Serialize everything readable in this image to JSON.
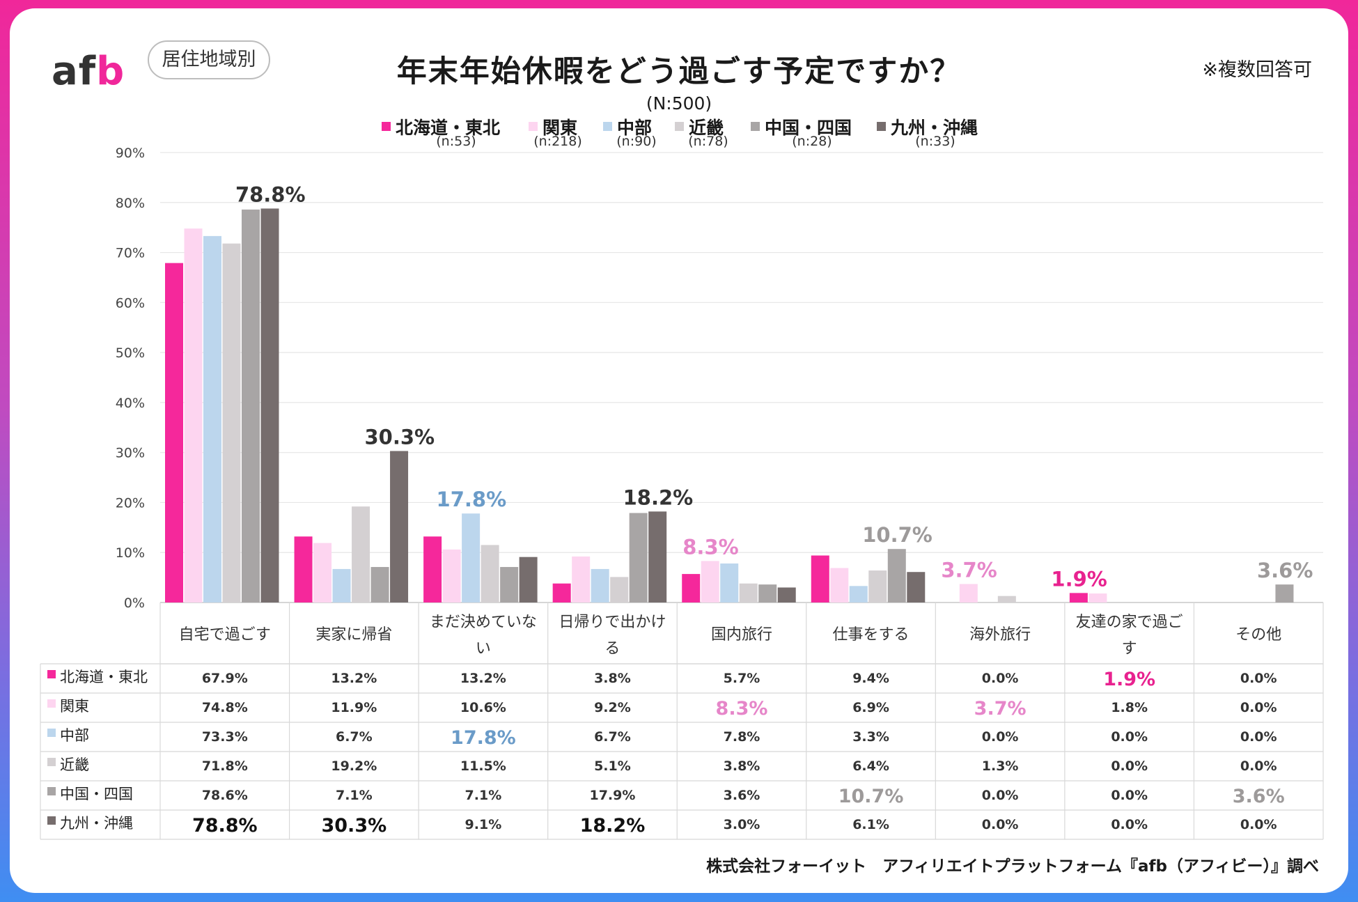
{
  "header": {
    "logo_a": "af",
    "logo_b": "b",
    "segment_label": "居住地域別",
    "title": "年末年始休暇をどう過ごす予定ですか？",
    "sample": "(N:500)",
    "note": "※複数回答可"
  },
  "footer": {
    "credit": "株式会社フォーイット　アフィリエイトプラットフォーム『afb（アフィビー）』調べ"
  },
  "chart_data": {
    "type": "bar",
    "title": "年末年始休暇をどう過ごす予定ですか？",
    "ylim": [
      0,
      90
    ],
    "yticks": [
      "0%",
      "10%",
      "20%",
      "30%",
      "40%",
      "50%",
      "60%",
      "70%",
      "80%",
      "90%"
    ],
    "categories": [
      [
        "自宅で過ごす"
      ],
      [
        "実家に帰省"
      ],
      [
        "まだ決めていな",
        "い"
      ],
      [
        "日帰りで出かけ",
        "る"
      ],
      [
        "国内旅行"
      ],
      [
        "仕事をする"
      ],
      [
        "海外旅行"
      ],
      [
        "友達の家で過ご",
        "す"
      ],
      [
        "その他"
      ]
    ],
    "series": [
      {
        "name": "北海道・東北",
        "n": "(n:53)",
        "color": "#f5289b",
        "values": [
          67.9,
          13.2,
          13.2,
          3.8,
          5.7,
          9.4,
          0.0,
          1.9,
          0.0
        ]
      },
      {
        "name": "関東",
        "n": "(n:218)",
        "color": "#fdd5f0",
        "values": [
          74.8,
          11.9,
          10.6,
          9.2,
          8.3,
          6.9,
          3.7,
          1.8,
          0.0
        ]
      },
      {
        "name": "中部",
        "n": "(n:90)",
        "color": "#bcd6ed",
        "values": [
          73.3,
          6.7,
          17.8,
          6.7,
          7.8,
          3.3,
          0.0,
          0.0,
          0.0
        ]
      },
      {
        "name": "近畿",
        "n": "(n:78)",
        "color": "#d4d0d2",
        "values": [
          71.8,
          19.2,
          11.5,
          5.1,
          3.8,
          6.4,
          1.3,
          0.0,
          0.0
        ]
      },
      {
        "name": "中国・四国",
        "n": "(n:28)",
        "color": "#a8a5a5",
        "values": [
          78.6,
          7.1,
          7.1,
          17.9,
          3.6,
          10.7,
          0.0,
          0.0,
          3.6
        ]
      },
      {
        "name": "九州・沖縄",
        "n": "(n:33)",
        "color": "#766d6d",
        "values": [
          78.8,
          30.3,
          9.1,
          18.2,
          3.0,
          6.1,
          0.0,
          0.0,
          0.0
        ]
      }
    ],
    "highlights": [
      {
        "category": 0,
        "series": 5,
        "label": "78.8%",
        "color": "#333333"
      },
      {
        "category": 1,
        "series": 5,
        "label": "30.3%",
        "color": "#333333"
      },
      {
        "category": 2,
        "series": 2,
        "label": "17.8%",
        "color": "#6a9bc8"
      },
      {
        "category": 3,
        "series": 5,
        "label": "18.2%",
        "color": "#333333"
      },
      {
        "category": 4,
        "series": 1,
        "label": "8.3%",
        "color": "#e686c9"
      },
      {
        "category": 5,
        "series": 4,
        "label": "10.7%",
        "color": "#9d9a9a"
      },
      {
        "category": 6,
        "series": 1,
        "label": "3.7%",
        "color": "#e686c9"
      },
      {
        "category": 7,
        "series": 0,
        "label": "1.9%",
        "color": "#e8228f"
      },
      {
        "category": 8,
        "series": 4,
        "label": "3.6%",
        "color": "#9d9a9a"
      }
    ],
    "table": {
      "rows": [
        [
          "67.9%",
          "13.2%",
          "13.2%",
          "3.8%",
          "5.7%",
          "9.4%",
          "0.0%",
          "1.9%",
          "0.0%"
        ],
        [
          "74.8%",
          "11.9%",
          "10.6%",
          "9.2%",
          "8.3%",
          "6.9%",
          "3.7%",
          "1.8%",
          "0.0%"
        ],
        [
          "73.3%",
          "6.7%",
          "17.8%",
          "6.7%",
          "7.8%",
          "3.3%",
          "0.0%",
          "0.0%",
          "0.0%"
        ],
        [
          "71.8%",
          "19.2%",
          "11.5%",
          "5.1%",
          "3.8%",
          "6.4%",
          "1.3%",
          "0.0%",
          "0.0%"
        ],
        [
          "78.6%",
          "7.1%",
          "7.1%",
          "17.9%",
          "3.6%",
          "10.7%",
          "0.0%",
          "0.0%",
          "3.6%"
        ],
        [
          "78.8%",
          "30.3%",
          "9.1%",
          "18.2%",
          "3.0%",
          "6.1%",
          "0.0%",
          "0.0%",
          "0.0%"
        ]
      ]
    }
  }
}
